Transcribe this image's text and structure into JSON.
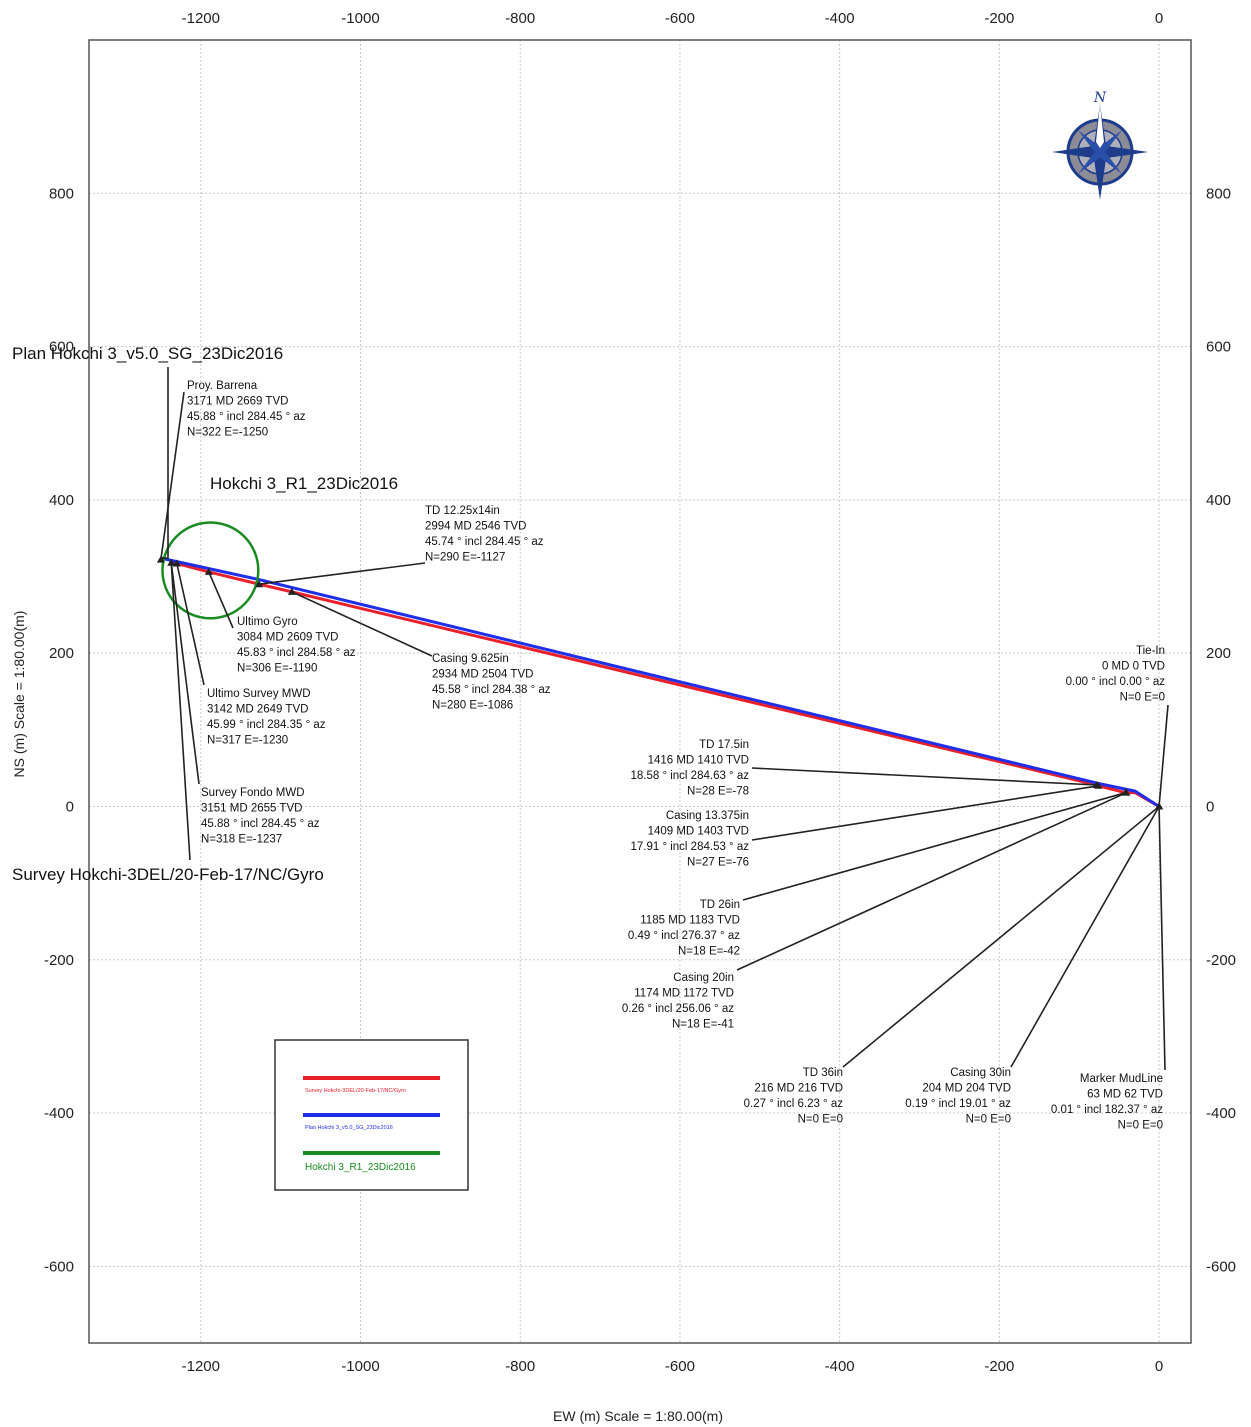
{
  "chart_data": {
    "type": "line",
    "xlabel": "EW (m) Scale = 1:80.00(m)",
    "ylabel": "NS (m) Scale = 1:80.00(m)",
    "xlim": [
      -1340,
      40
    ],
    "ylim": [
      -700,
      1000
    ],
    "xticks": [
      -1200,
      -1000,
      -800,
      -600,
      -400,
      -200,
      0
    ],
    "yticks": [
      -600,
      -400,
      -200,
      0,
      200,
      400,
      600,
      800
    ],
    "grid": true,
    "series": [
      {
        "name": "Survey Hokchi-3DEL/20-Feb-17/NC/Gyro",
        "color": "#e8202a",
        "x": [
          0,
          0,
          0,
          -30,
          -42,
          -76,
          -78,
          -1086,
          -1127,
          -1190,
          -1230,
          -1237
        ],
        "y": [
          0,
          0,
          0,
          18,
          18,
          27,
          28,
          280,
          290,
          306,
          317,
          318
        ]
      },
      {
        "name": "Plan Hokchi 3_v5.0_SG_23Dic2016",
        "color": "#1f2ee8",
        "x": [
          0,
          -30,
          -76,
          -1127,
          -1250
        ],
        "y": [
          0,
          20,
          30,
          296,
          324
        ]
      }
    ],
    "target": {
      "name": "Hokchi 3_R1_23Dic2016",
      "color": "#1a8a22",
      "cx": -1188,
      "cy": 308,
      "r": 60
    },
    "well_labels": [
      {
        "text": "Plan Hokchi 3_v5.0_SG_23Dic2016",
        "anchor_x": -1250,
        "anchor_y": 324
      },
      {
        "text": "Survey Hokchi-3DEL/20-Feb-17/NC/Gyro",
        "anchor_x": -1237,
        "anchor_y": 318
      }
    ],
    "annotations": [
      {
        "lines": [
          "Proy. Barrena",
          "3171 MD 2669 TVD",
          "45.88 ° incl 284.45 ° az",
          "N=322 E=-1250"
        ],
        "px": -1250,
        "py": 322
      },
      {
        "lines": [
          "TD 12.25x14in",
          "2994 MD 2546 TVD",
          "45.74 ° incl 284.45 ° az",
          "N=290 E=-1127"
        ],
        "px": -1127,
        "py": 290
      },
      {
        "lines": [
          "Ultimo Gyro",
          "3084 MD 2609 TVD",
          "45.83 ° incl 284.58 ° az",
          "N=306 E=-1190"
        ],
        "px": -1190,
        "py": 306
      },
      {
        "lines": [
          "Casing 9.625in",
          "2934 MD 2504 TVD",
          "45.58 ° incl 284.38 ° az",
          "N=280 E=-1086"
        ],
        "px": -1086,
        "py": 280
      },
      {
        "lines": [
          "Ultimo Survey MWD",
          "3142 MD 2649 TVD",
          "45.99 ° incl 284.35 ° az",
          "N=317 E=-1230"
        ],
        "px": -1230,
        "py": 317
      },
      {
        "lines": [
          "Survey Fondo MWD",
          "3151 MD 2655 TVD",
          "45.88 ° incl 284.45 ° az",
          "N=318 E=-1237"
        ],
        "px": -1237,
        "py": 318
      },
      {
        "lines": [
          "Tie-In",
          "0 MD 0 TVD",
          "0.00 ° incl 0.00 ° az",
          "N=0 E=0"
        ],
        "px": 0,
        "py": 0
      },
      {
        "lines": [
          "TD 17.5in",
          "1416 MD 1410 TVD",
          "18.58 ° incl 284.63 ° az",
          "N=28 E=-78"
        ],
        "px": -78,
        "py": 28
      },
      {
        "lines": [
          "Casing 13.375in",
          "1409 MD 1403 TVD",
          "17.91 ° incl 284.53 ° az",
          "N=27 E=-76"
        ],
        "px": -76,
        "py": 27
      },
      {
        "lines": [
          "TD 26in",
          "1185 MD 1183 TVD",
          "0.49 ° incl 276.37 ° az",
          "N=18 E=-42"
        ],
        "px": -42,
        "py": 18
      },
      {
        "lines": [
          "Casing 20in",
          "1174 MD 1172 TVD",
          "0.26 ° incl 256.06 ° az",
          "N=18 E=-41"
        ],
        "px": -41,
        "py": 18
      },
      {
        "lines": [
          "TD 36in",
          "216 MD 216 TVD",
          "0.27 ° incl 6.23 ° az",
          "N=0 E=0"
        ],
        "px": 0,
        "py": 0
      },
      {
        "lines": [
          "Casing 30in",
          "204 MD 204 TVD",
          "0.19 ° incl 19.01 ° az",
          "N=0 E=0"
        ],
        "px": 0,
        "py": 0
      },
      {
        "lines": [
          "Marker MudLine",
          "63 MD 62 TVD",
          "0.01 ° incl 182.37 ° az",
          "N=0 E=0"
        ],
        "px": 0,
        "py": 0
      }
    ],
    "legend": {
      "placement": "bottom-left",
      "entries": [
        {
          "label": "Survey Hokchi-3DEL/20-Feb-17/NC/Gyro",
          "color": "#e8202a"
        },
        {
          "label": "Plan Hokchi 3_v5.0_SG_23Dic2016",
          "color": "#1f2ee8"
        },
        {
          "label": "Hokchi 3_R1_23Dic2016",
          "color": "#1a8a22"
        }
      ]
    },
    "compass": {
      "label": "N",
      "icon": "compass-rose-icon",
      "color": "#1e3c8c"
    }
  }
}
